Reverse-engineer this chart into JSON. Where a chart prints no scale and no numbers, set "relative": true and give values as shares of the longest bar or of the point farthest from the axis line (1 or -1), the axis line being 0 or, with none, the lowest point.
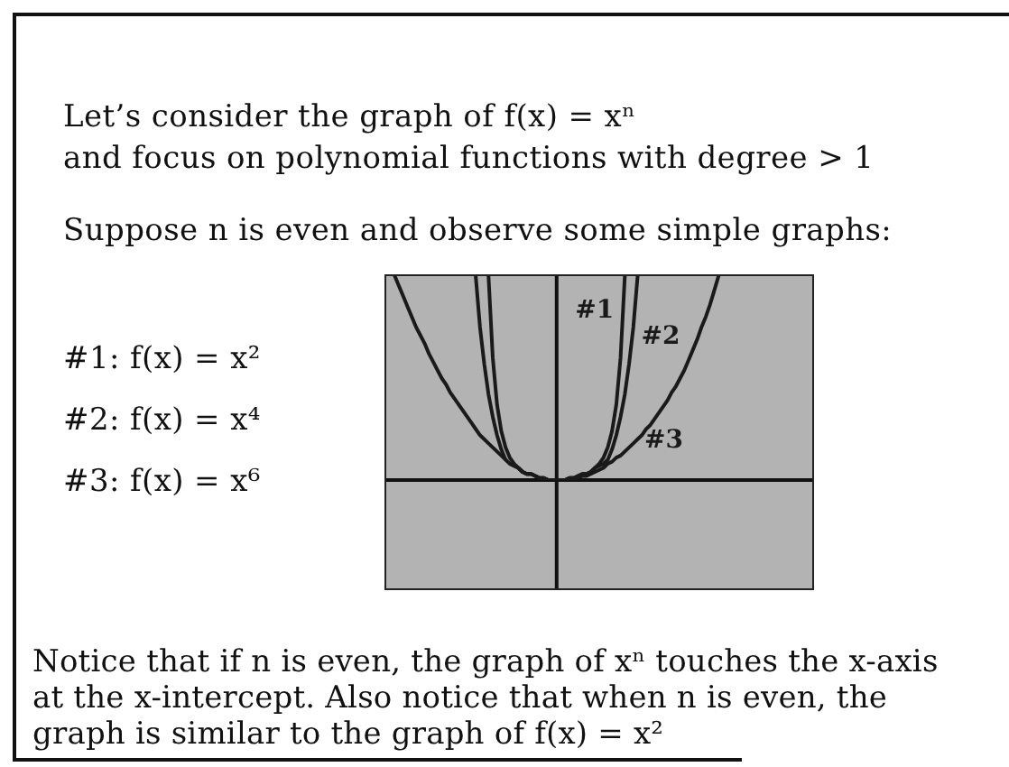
{
  "chart_data": {
    "type": "line",
    "title": "Let’s consider the graph of f(x) = xⁿ",
    "subtitle": "and focus on polynomial functions with degree > 1",
    "annotations": [
      "Suppose n is even and observe some simple graphs:",
      "#1: f(x) = x²",
      "#2: f(x) = x⁴",
      "#3: f(x) = x⁶",
      "Notice that if n is even, the graph of xⁿ touches the x-axis at the x-intercept. Also notice that when n is even, the graph is similar to the graph of f(x) = x²"
    ],
    "relative": true,
    "legend": false,
    "categories": [
      null,
      null,
      null,
      null,
      null,
      null,
      null,
      null,
      null,
      null,
      null,
      null,
      null,
      null,
      null,
      null,
      null,
      null,
      null,
      null,
      null,
      null,
      null,
      null,
      null,
      null,
      null,
      null,
      null,
      null,
      null,
      null,
      null,
      null,
      null,
      null,
      null,
      null,
      null,
      null,
      null,
      null,
      null,
      null,
      null,
      null,
      null,
      null,
      null,
      null,
      null,
      null,
      null,
      null,
      null,
      null,
      null,
      null,
      null,
      null,
      null,
      null,
      null,
      null,
      null,
      null,
      null,
      null,
      null,
      null,
      null,
      null,
      null,
      null,
      null,
      null,
      null,
      null,
      null,
      null,
      null,
      null,
      null,
      null,
      null,
      null,
      null,
      null,
      null,
      null,
      null,
      null,
      null,
      null,
      null,
      null,
      null,
      null,
      null,
      null,
      null
    ],
    "series": [
      {
        "name": "#1",
        "color": "#1a1a1a",
        "values": [
          null,
          null,
          null,
          null,
          null,
          null,
          null,
          null,
          null,
          null,
          null,
          null,
          null,
          null,
          null,
          null,
          null,
          null,
          null,
          null,
          null,
          null,
          null,
          null,
          1,
          0.6,
          0.37,
          0.24,
          0.16,
          0.11,
          0.08,
          0.06,
          0.04,
          0.03,
          0.03,
          0.02,
          0.01,
          0.01,
          0,
          0,
          0,
          0,
          0,
          0.01,
          0.01,
          0.02,
          0.03,
          0.03,
          0.04,
          0.06,
          0.08,
          0.11,
          0.16,
          0.24,
          0.37,
          0.6,
          1,
          null,
          null,
          null,
          null,
          null,
          null,
          null,
          null,
          null,
          null,
          null,
          null,
          null,
          null,
          null,
          null,
          null,
          null,
          null,
          null,
          null,
          null,
          null,
          null,
          null,
          null,
          null,
          null,
          null,
          null,
          null,
          null,
          null,
          null,
          null,
          null,
          null,
          null,
          null,
          null,
          null,
          null,
          null,
          null
        ]
      },
      {
        "name": "#2",
        "color": "#1a1a1a",
        "values": [
          null,
          null,
          null,
          null,
          null,
          null,
          null,
          null,
          null,
          null,
          null,
          null,
          null,
          null,
          null,
          null,
          null,
          null,
          null,
          null,
          null,
          1,
          0.75,
          0.57,
          0.42,
          0.31,
          0.22,
          0.15,
          0.1,
          0.08,
          0.07,
          0.06,
          0.04,
          0.03,
          0.03,
          0.02,
          0.01,
          0.01,
          0,
          0,
          0,
          0,
          0,
          0.01,
          0.01,
          0.02,
          0.03,
          0.03,
          0.04,
          0.06,
          0.07,
          0.08,
          0.1,
          0.15,
          0.22,
          0.31,
          0.42,
          0.57,
          0.75,
          1,
          null,
          null,
          null,
          null,
          null,
          null,
          null,
          null,
          null,
          null,
          null,
          null,
          null,
          null,
          null,
          null,
          null,
          null,
          null,
          null,
          null,
          null,
          null,
          null,
          null,
          null,
          null,
          null,
          null,
          null,
          null,
          null,
          null,
          null,
          null,
          null,
          null,
          null,
          null,
          null,
          null
        ]
      },
      {
        "name": "#3",
        "color": "#1a1a1a",
        "values": [
          null,
          null,
          1,
          0.95,
          0.9,
          0.85,
          0.8,
          0.75,
          0.71,
          0.67,
          0.62,
          0.58,
          0.54,
          0.5,
          0.47,
          0.43,
          0.4,
          0.37,
          0.34,
          0.31,
          0.28,
          0.25,
          0.22,
          0.2,
          0.18,
          0.16,
          0.14,
          0.12,
          0.1,
          0.08,
          0.07,
          0.06,
          0.04,
          0.03,
          0.03,
          0.02,
          0.01,
          0.01,
          0,
          0,
          0,
          0,
          0,
          0.01,
          0.01,
          0.01,
          0.02,
          0.02,
          0.03,
          0.04,
          0.05,
          0.06,
          0.08,
          0.09,
          0.11,
          0.12,
          0.14,
          0.16,
          0.18,
          0.2,
          0.22,
          0.25,
          0.27,
          0.3,
          0.33,
          0.36,
          0.39,
          0.43,
          0.46,
          0.5,
          0.54,
          0.59,
          0.64,
          0.69,
          0.75,
          0.8,
          0.86,
          0.93,
          1,
          null,
          null,
          null,
          null,
          null,
          null,
          null,
          null,
          null,
          null,
          null,
          null,
          null,
          null,
          null,
          null,
          null,
          null,
          null,
          null,
          null,
          null
        ]
      }
    ]
  }
}
